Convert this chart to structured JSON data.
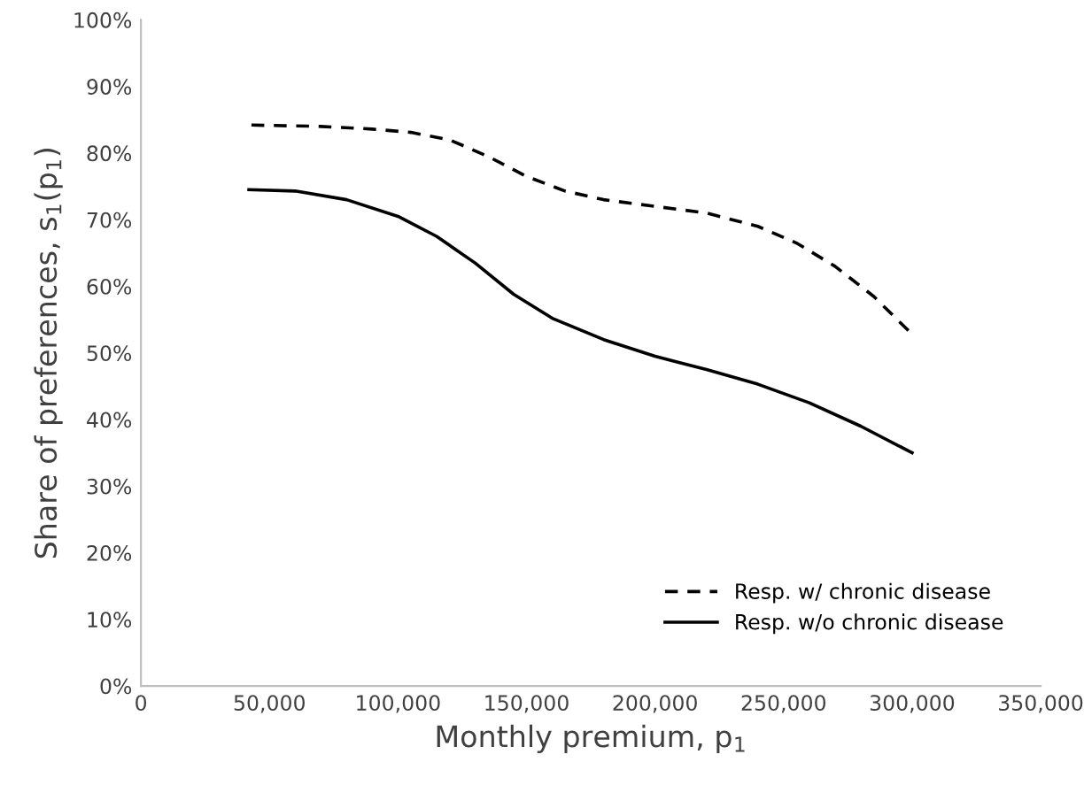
{
  "chart_data": {
    "type": "line",
    "xlabel": "Monthly premium, p$_{1}$",
    "ylabel": "Share of preferences, s$_{1}$(p$_{1}$)",
    "xlim": [
      0,
      350000
    ],
    "xticks": [
      0,
      {
        "value": 50000,
        "label": "50,000"
      },
      {
        "value": 100000,
        "label": "100,000"
      },
      {
        "value": 150000,
        "label": "150,000"
      },
      {
        "value": 200000,
        "label": "200,000"
      },
      {
        "value": 250000,
        "label": "250,000"
      },
      {
        "value": 300000,
        "label": "300,000"
      },
      {
        "value": 350000,
        "label": "350,000"
      }
    ],
    "ylim": [
      0,
      100
    ],
    "yticks": [
      {
        "value": 0,
        "label": "0%"
      },
      {
        "value": 10,
        "label": "10%"
      },
      {
        "value": 20,
        "label": "20%"
      },
      {
        "value": 30,
        "label": "30%"
      },
      {
        "value": 40,
        "label": "40%"
      },
      {
        "value": 50,
        "label": "50%"
      },
      {
        "value": 60,
        "label": "60%"
      },
      {
        "value": 70,
        "label": "70%"
      },
      {
        "value": 80,
        "label": "80%"
      },
      {
        "value": 90,
        "label": "90%"
      },
      {
        "value": 100,
        "label": "100%"
      }
    ],
    "grid": false,
    "legend": "bottom right",
    "marker": "none",
    "series": [
      {
        "name": "Resp. w/ chronic disease",
        "color": "#000000",
        "line_style": "dashed",
        "x": [
          43000,
          70000,
          90000,
          105000,
          120000,
          135000,
          150000,
          165000,
          180000,
          200000,
          220000,
          240000,
          255000,
          270000,
          285000,
          300000
        ],
        "values": [
          84.2,
          84,
          83.6,
          83.1,
          82,
          79.5,
          76.5,
          74.3,
          73,
          72,
          71,
          69,
          66.5,
          63,
          58.5,
          52.8
        ]
      },
      {
        "name": "Resp. w/o chronic disease",
        "color": "#000000",
        "line_style": "solid",
        "x": [
          42000,
          60000,
          80000,
          100000,
          115000,
          130000,
          145000,
          160000,
          180000,
          200000,
          220000,
          240000,
          260000,
          280000,
          300000
        ],
        "values": [
          74.5,
          74.3,
          73,
          70.5,
          67.5,
          63.5,
          58.8,
          55.2,
          52,
          49.5,
          47.5,
          45.3,
          42.5,
          39,
          35
        ]
      }
    ]
  }
}
